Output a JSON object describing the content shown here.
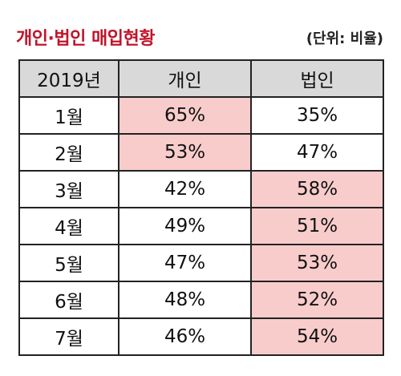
{
  "title": "개인·법인 매입현황",
  "unit_note": "(단위: 비율)",
  "chart_data": {
    "type": "table",
    "title": "개인·법인 매입현황",
    "unit": "(단위: 비율)",
    "columns": [
      "2019년",
      "개인",
      "법인"
    ],
    "rows": [
      {
        "month": "1월",
        "individual": "65%",
        "corporate": "35%",
        "highlight": "individual"
      },
      {
        "month": "2월",
        "individual": "53%",
        "corporate": "47%",
        "highlight": "individual"
      },
      {
        "month": "3월",
        "individual": "42%",
        "corporate": "58%",
        "highlight": "corporate"
      },
      {
        "month": "4월",
        "individual": "49%",
        "corporate": "51%",
        "highlight": "corporate"
      },
      {
        "month": "5월",
        "individual": "47%",
        "corporate": "53%",
        "highlight": "corporate"
      },
      {
        "month": "6월",
        "individual": "48%",
        "corporate": "52%",
        "highlight": "corporate"
      },
      {
        "month": "7월",
        "individual": "46%",
        "corporate": "54%",
        "highlight": "corporate"
      }
    ]
  },
  "colors": {
    "title": "#c0142a",
    "header_bg": "#d9d9d9",
    "highlight_bg": "#f9cccc",
    "border": "#222222"
  }
}
